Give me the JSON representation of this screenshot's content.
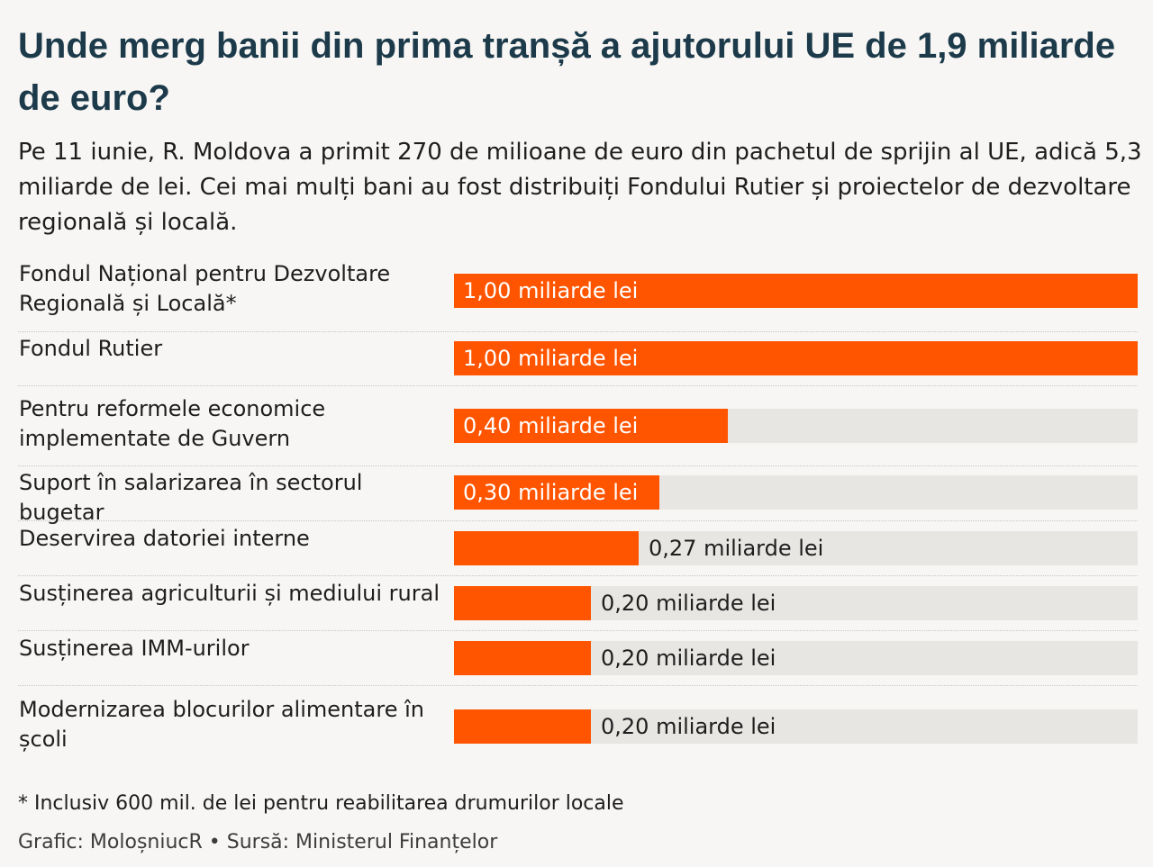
{
  "title": "Unde merg banii din prima tranșă a ajutorului UE de 1,9 miliarde de euro?",
  "subtitle": "Pe 11 iunie, R. Moldova a primit 270 de milioane de euro din pachetul de sprijin al UE, adică 5,3 miliarde de lei. Cei mai mulți bani au fost distribuiți Fondului Rutier și proiectelor de dezvoltare regională și locală.",
  "colors": {
    "bar": "#ff5500",
    "track": "#e8e6e3",
    "title": "#1c3a4a"
  },
  "chart_data": {
    "type": "bar",
    "orientation": "horizontal",
    "unit": "miliarde lei",
    "xlim": [
      0,
      1.0
    ],
    "grid": false,
    "categories": [
      "Fondul Național pentru Dezvoltare Regională și Locală*",
      "Fondul Rutier",
      "Pentru reformele economice implementate de Guvern",
      "Suport în salarizarea în sectorul bugetar",
      "Deservirea datoriei interne",
      "Susținerea agriculturii și mediului rural",
      "Susținerea IMM-urilor",
      "Modernizarea blocurilor alimentare în școli"
    ],
    "values": [
      1.0,
      1.0,
      0.4,
      0.3,
      0.27,
      0.2,
      0.2,
      0.2
    ],
    "value_labels": [
      "1,00 miliarde lei",
      "1,00 miliarde lei",
      "0,40 miliarde lei",
      "0,30 miliarde lei",
      "0,27 miliarde lei",
      "0,20 miliarde lei",
      "0,20 miliarde lei",
      "0,20 miliarde lei"
    ]
  },
  "footnote": "* Inclusiv 600 mil. de lei pentru reabilitarea drumurilor locale",
  "credits": "Grafic: MoloșniucR • Sursă: Ministerul Finanțelor"
}
